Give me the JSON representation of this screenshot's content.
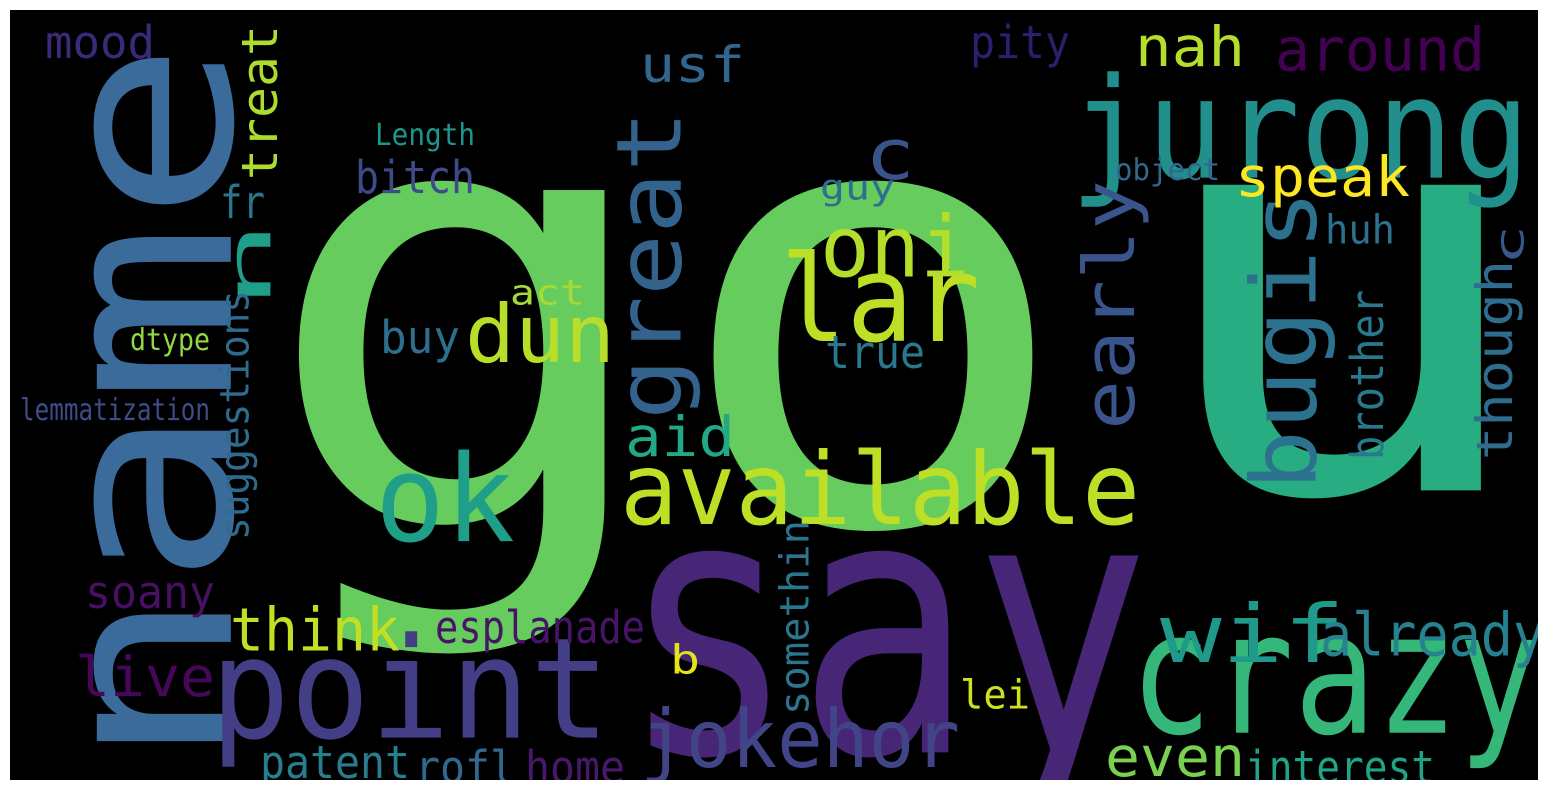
{
  "word_cloud": {
    "background": "#000000",
    "palette": "viridis",
    "words": [
      {
        "text": "go",
        "color": "#66cc5e"
      },
      {
        "text": "u",
        "color": "#27ad81"
      },
      {
        "text": "name",
        "color": "#3b6b9b"
      },
      {
        "text": "say",
        "color": "#482677"
      },
      {
        "text": "point",
        "color": "#433e85"
      },
      {
        "text": "jurong",
        "color": "#21908d"
      },
      {
        "text": "crazy",
        "color": "#35b779"
      },
      {
        "text": "available",
        "color": "#bddf26"
      },
      {
        "text": "ok",
        "color": "#1f9e89"
      },
      {
        "text": "great",
        "color": "#33638d"
      },
      {
        "text": "lar",
        "color": "#bddf26"
      },
      {
        "text": "bugis",
        "color": "#2c728e"
      },
      {
        "text": "oni",
        "color": "#b4de2c"
      },
      {
        "text": "dun",
        "color": "#b8de29"
      },
      {
        "text": "jokehor",
        "color": "#414487"
      },
      {
        "text": "early",
        "color": "#3a548c"
      },
      {
        "text": "wif",
        "color": "#1f9a8a"
      },
      {
        "text": "already",
        "color": "#26828e"
      },
      {
        "text": "c",
        "color": "#3b528b"
      },
      {
        "text": "n",
        "color": "#1f9e89"
      },
      {
        "text": "nah",
        "color": "#b5de2b"
      },
      {
        "text": "around",
        "color": "#440154"
      },
      {
        "text": "speak",
        "color": "#fde725"
      },
      {
        "text": "think",
        "color": "#c2df23"
      },
      {
        "text": "usf",
        "color": "#31668e"
      },
      {
        "text": "treat",
        "color": "#addc30"
      },
      {
        "text": "aid",
        "color": "#22a884"
      },
      {
        "text": "even",
        "color": "#7ad151"
      },
      {
        "text": "brother",
        "color": "#2a788e"
      },
      {
        "text": "though",
        "color": "#2f6c8e"
      },
      {
        "text": "live",
        "color": "#46075a"
      },
      {
        "text": "esplanade",
        "color": "#481467"
      },
      {
        "text": "interest",
        "color": "#20a386"
      },
      {
        "text": "bitch",
        "color": "#3e4a89"
      },
      {
        "text": "pity",
        "color": "#2d1e6e"
      },
      {
        "text": "mood",
        "color": "#3b2a78"
      },
      {
        "text": "soany",
        "color": "#471063"
      },
      {
        "text": "somethin",
        "color": "#2a768e"
      },
      {
        "text": "suggestions",
        "color": "#2f6b8e"
      },
      {
        "text": "patent",
        "color": "#277f8e"
      },
      {
        "text": "rofl",
        "color": "#31688e"
      },
      {
        "text": "home",
        "color": "#48186a"
      },
      {
        "text": "buy",
        "color": "#2d708e"
      },
      {
        "text": "true",
        "color": "#2a788e"
      },
      {
        "text": "guy",
        "color": "#2e6e8e"
      },
      {
        "text": "huh",
        "color": "#2c718e"
      },
      {
        "text": "fr",
        "color": "#2a768e"
      },
      {
        "text": "act",
        "color": "#a5db36"
      },
      {
        "text": "b",
        "color": "#e2e418"
      },
      {
        "text": "lei",
        "color": "#cde11d"
      },
      {
        "text": "Length",
        "color": "#1f968b"
      },
      {
        "text": "object",
        "color": "#31688e"
      },
      {
        "text": "dtype",
        "color": "#93d741"
      },
      {
        "text": "lemmatization",
        "color": "#3e4c8a"
      },
      {
        "text": "c",
        "color": "#38588c"
      }
    ]
  }
}
